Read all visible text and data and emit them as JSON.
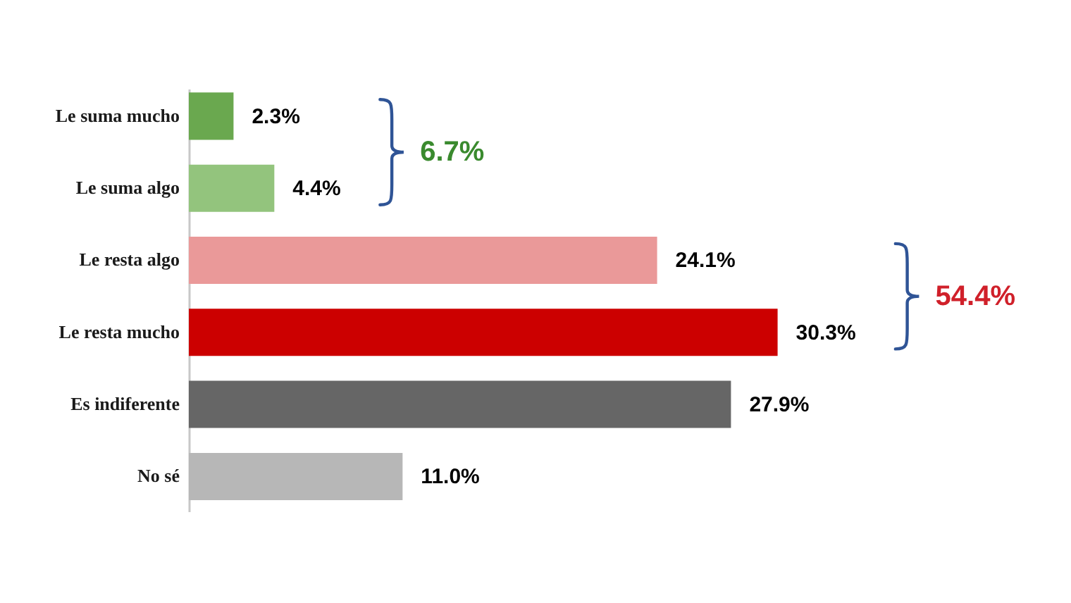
{
  "chart_data": {
    "type": "bar",
    "orientation": "horizontal",
    "categories": [
      "Le suma mucho",
      "Le suma algo",
      "Le resta algo",
      "Le resta mucho",
      "Es indiferente",
      "No sé"
    ],
    "values": [
      2.3,
      4.4,
      24.1,
      30.3,
      27.9,
      11.0
    ],
    "colors": [
      "#6aa84f",
      "#93c47d",
      "#ea9999",
      "#cc0000",
      "#666666",
      "#b7b7b7"
    ],
    "value_labels": [
      "2.3%",
      "4.4%",
      "24.1%",
      "30.3%",
      "27.9%",
      "11.0%"
    ],
    "annotations": [
      "6.7%",
      "54.4%"
    ],
    "tick_labels": "y"
  }
}
